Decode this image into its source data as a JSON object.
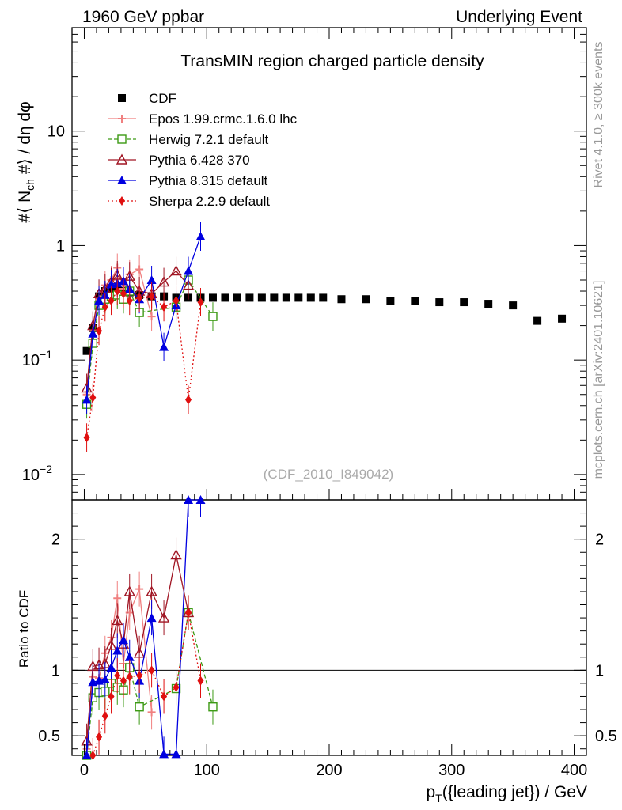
{
  "header": {
    "left": "1960 GeV ppbar",
    "right": "Underlying Event"
  },
  "side_labels": {
    "rivet": "Rivet 4.1.0, ≥ 300k events",
    "source": "mcplots.cern.ch [arXiv:2401.10621]"
  },
  "watermark": "(CDF_2010_I849042)",
  "colors": {
    "CDF": "#000000",
    "Epos": "#f08080",
    "Herwig": "#3c9a14",
    "Pythia6": "#a01523",
    "Pythia8": "#0000e0",
    "Sherpa": "#e01010"
  },
  "chart_data": [
    {
      "type": "scatter",
      "title": "TransMIN region charged particle density",
      "ylabel": "#⟨ N_ch #⟩ / dη dφ",
      "yscale": "log",
      "xlim": [
        -10,
        410
      ],
      "ylim": [
        0.006,
        80
      ],
      "y_ticks": [
        {
          "value": 0.01,
          "label": "10",
          "exp": "−2"
        },
        {
          "value": 0.1,
          "label": "10",
          "exp": "−1"
        },
        {
          "value": 1,
          "label": "1",
          "exp": ""
        },
        {
          "value": 10,
          "label": "10",
          "exp": ""
        }
      ],
      "legend": [
        {
          "key": "CDF",
          "label": "CDF"
        },
        {
          "key": "Epos",
          "label": "Epos 1.99.crmc.1.6.0 lhc"
        },
        {
          "key": "Herwig",
          "label": "Herwig 7.2.1 default"
        },
        {
          "key": "Pythia6",
          "label": "Pythia 6.428 370"
        },
        {
          "key": "Pythia8",
          "label": "Pythia 8.315 default"
        },
        {
          "key": "Sherpa",
          "label": "Sherpa 2.2.9 default"
        }
      ],
      "series": [
        {
          "key": "CDF",
          "name": "CDF",
          "marker": "square",
          "dash": "",
          "x": [
            2,
            7,
            12,
            17,
            22,
            27,
            32,
            37,
            45,
            55,
            65,
            75,
            85,
            95,
            105,
            115,
            125,
            135,
            145,
            155,
            165,
            175,
            185,
            195,
            210,
            230,
            250,
            270,
            290,
            310,
            330,
            350,
            370,
            390
          ],
          "y": [
            0.12,
            0.19,
            0.36,
            0.4,
            0.4,
            0.41,
            0.4,
            0.39,
            0.37,
            0.36,
            0.36,
            0.35,
            0.35,
            0.35,
            0.35,
            0.35,
            0.35,
            0.35,
            0.35,
            0.35,
            0.35,
            0.35,
            0.35,
            0.35,
            0.34,
            0.34,
            0.33,
            0.33,
            0.32,
            0.32,
            0.31,
            0.3,
            0.22,
            0.23
          ]
        },
        {
          "key": "Epos",
          "name": "Epos 1.99.crmc.1.6.0 lhc",
          "marker": "cross",
          "dash": "",
          "x": [
            2,
            7,
            12,
            17,
            22,
            27,
            32,
            37,
            45,
            55
          ],
          "y": [
            0.05,
            0.18,
            0.34,
            0.45,
            0.5,
            0.64,
            0.42,
            0.56,
            0.62,
            0.24
          ]
        },
        {
          "key": "Herwig",
          "name": "Herwig 7.2.1 default",
          "marker": "square-open",
          "dash": "5,3",
          "x": [
            2,
            7,
            12,
            17,
            22,
            27,
            32,
            37,
            45,
            75,
            85,
            105
          ],
          "y": [
            0.041,
            0.14,
            0.3,
            0.34,
            0.36,
            0.37,
            0.34,
            0.4,
            0.26,
            0.29,
            0.5,
            0.24
          ]
        },
        {
          "key": "Pythia6",
          "name": "Pythia 6.428 370",
          "marker": "triangle-open",
          "dash": "",
          "x": [
            2,
            7,
            12,
            17,
            22,
            27,
            32,
            37,
            45,
            55,
            65,
            75,
            85
          ],
          "y": [
            0.057,
            0.2,
            0.38,
            0.42,
            0.48,
            0.55,
            0.48,
            0.54,
            0.4,
            0.38,
            0.48,
            0.6,
            0.45
          ]
        },
        {
          "key": "Pythia8",
          "name": "Pythia 8.315 default",
          "marker": "triangle",
          "dash": "",
          "x": [
            2,
            7,
            12,
            17,
            22,
            27,
            32,
            37,
            45,
            55,
            65,
            75,
            85,
            95
          ],
          "y": [
            0.045,
            0.17,
            0.33,
            0.37,
            0.46,
            0.47,
            0.49,
            0.42,
            0.34,
            0.5,
            0.13,
            0.3,
            0.6,
            1.2
          ]
        },
        {
          "key": "Sherpa",
          "name": "Sherpa 2.2.9 default",
          "marker": "diamond",
          "dash": "2,3",
          "x": [
            2,
            7,
            12,
            17,
            22,
            27,
            32,
            37,
            45,
            55,
            65,
            75,
            85,
            95
          ],
          "y": [
            0.021,
            0.047,
            0.18,
            0.29,
            0.33,
            0.4,
            0.38,
            0.33,
            0.35,
            0.36,
            0.29,
            0.33,
            0.045,
            0.32
          ]
        }
      ]
    },
    {
      "type": "scatter",
      "title": "",
      "ylabel": "Ratio to CDF",
      "xlabel": "p_T({leading jet}) / GeV",
      "yscale": "linear",
      "xlim": [
        -10,
        410
      ],
      "ylim": [
        0.35,
        2.3
      ],
      "x_ticks": [
        0,
        100,
        200,
        300,
        400
      ],
      "y_ticks": [
        0.5,
        1,
        2
      ],
      "series": [
        {
          "key": "Epos",
          "x": [
            2,
            7,
            12,
            17,
            22,
            27,
            32,
            37,
            45,
            55
          ],
          "y": [
            0.4,
            0.95,
            0.94,
            1.13,
            1.25,
            1.55,
            1.05,
            1.44,
            1.62,
            0.68
          ]
        },
        {
          "key": "Herwig",
          "x": [
            2,
            7,
            12,
            17,
            22,
            27,
            32,
            37,
            45,
            75,
            85,
            105
          ],
          "y": [
            0.34,
            0.79,
            0.83,
            0.84,
            0.9,
            0.87,
            0.85,
            1.02,
            0.72,
            0.86,
            1.44,
            0.72
          ]
        },
        {
          "key": "Pythia6",
          "x": [
            2,
            7,
            12,
            17,
            22,
            27,
            32,
            37,
            45,
            55,
            65,
            75,
            85
          ],
          "y": [
            0.46,
            1.03,
            1.04,
            1.05,
            1.19,
            1.38,
            1.2,
            1.6,
            1.13,
            1.6,
            1.4,
            1.88,
            1.44
          ]
        },
        {
          "key": "Pythia8",
          "x": [
            2,
            7,
            12,
            17,
            22,
            27,
            32,
            37,
            45,
            55,
            65,
            75,
            85,
            95
          ],
          "y": [
            0.35,
            0.91,
            0.92,
            0.93,
            1.02,
            1.15,
            1.23,
            1.1,
            0.92,
            1.4,
            0.36,
            0.36,
            2.3,
            2.3
          ]
        },
        {
          "key": "Sherpa",
          "x": [
            7,
            12,
            17,
            22,
            27,
            32,
            37,
            45,
            55,
            65,
            75,
            85,
            95
          ],
          "y": [
            0.34,
            0.49,
            0.65,
            0.8,
            0.96,
            0.92,
            0.95,
            0.96,
            1.0,
            0.8,
            0.87,
            1.44,
            0.92
          ]
        }
      ]
    }
  ]
}
